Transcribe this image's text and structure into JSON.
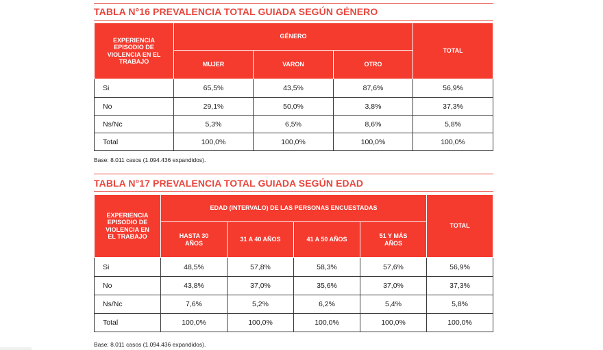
{
  "table16": {
    "title": "TABLA N°16 PREVALENCIA TOTAL GUIADA SEGÚN GÉNERO",
    "row_header": "EXPERIENCIA EPISODIO DE VIOLENCIA EN EL TRABAJO",
    "group_header": "GÉNERO",
    "columns": [
      "MUJER",
      "VARON",
      "OTRO"
    ],
    "total_header": "TOTAL",
    "rows": [
      {
        "label": "Si",
        "values": [
          "65,5%",
          "43,5%",
          "87,6%"
        ],
        "total": "56,9%"
      },
      {
        "label": "No",
        "values": [
          "29,1%",
          "50,0%",
          "3,8%"
        ],
        "total": "37,3%"
      },
      {
        "label": "Ns/Nc",
        "values": [
          "5,3%",
          "6,5%",
          "8,6%"
        ],
        "total": "5,8%"
      },
      {
        "label": "Total",
        "values": [
          "100,0%",
          "100,0%",
          "100,0%"
        ],
        "total": "100,0%"
      }
    ],
    "base": "Base: 8.011 casos (1.094.436 expandidos)."
  },
  "table17": {
    "title": "TABLA N°17 PREVALENCIA TOTAL GUIADA SEGÚN EDAD",
    "row_header": "EXPERIENCIA EPISODIO DE VIOLENCIA EN EL TRABAJO",
    "group_header": "EDAD (INTERVALO) DE LAS PERSONAS ENCUESTADAS",
    "columns": [
      "HASTA 30 AÑOS",
      "31 A 40 AÑOS",
      "41 A 50 AÑOS",
      "51 Y MÁS AÑOS"
    ],
    "total_header": "TOTAL",
    "rows": [
      {
        "label": "Si",
        "values": [
          "48,5%",
          "57,8%",
          "58,3%",
          "57,6%"
        ],
        "total": "56,9%"
      },
      {
        "label": "No",
        "values": [
          "43,8%",
          "37,0%",
          "35,6%",
          "37,0%"
        ],
        "total": "37,3%"
      },
      {
        "label": "Ns/Nc",
        "values": [
          "7,6%",
          "5,2%",
          "6,2%",
          "5,4%"
        ],
        "total": "5,8%"
      },
      {
        "label": "Total",
        "values": [
          "100,0%",
          "100,0%",
          "100,0%",
          "100,0%"
        ],
        "total": "100,0%"
      }
    ],
    "base": "Base: 8.011 casos (1.094.436 expandidos)."
  }
}
